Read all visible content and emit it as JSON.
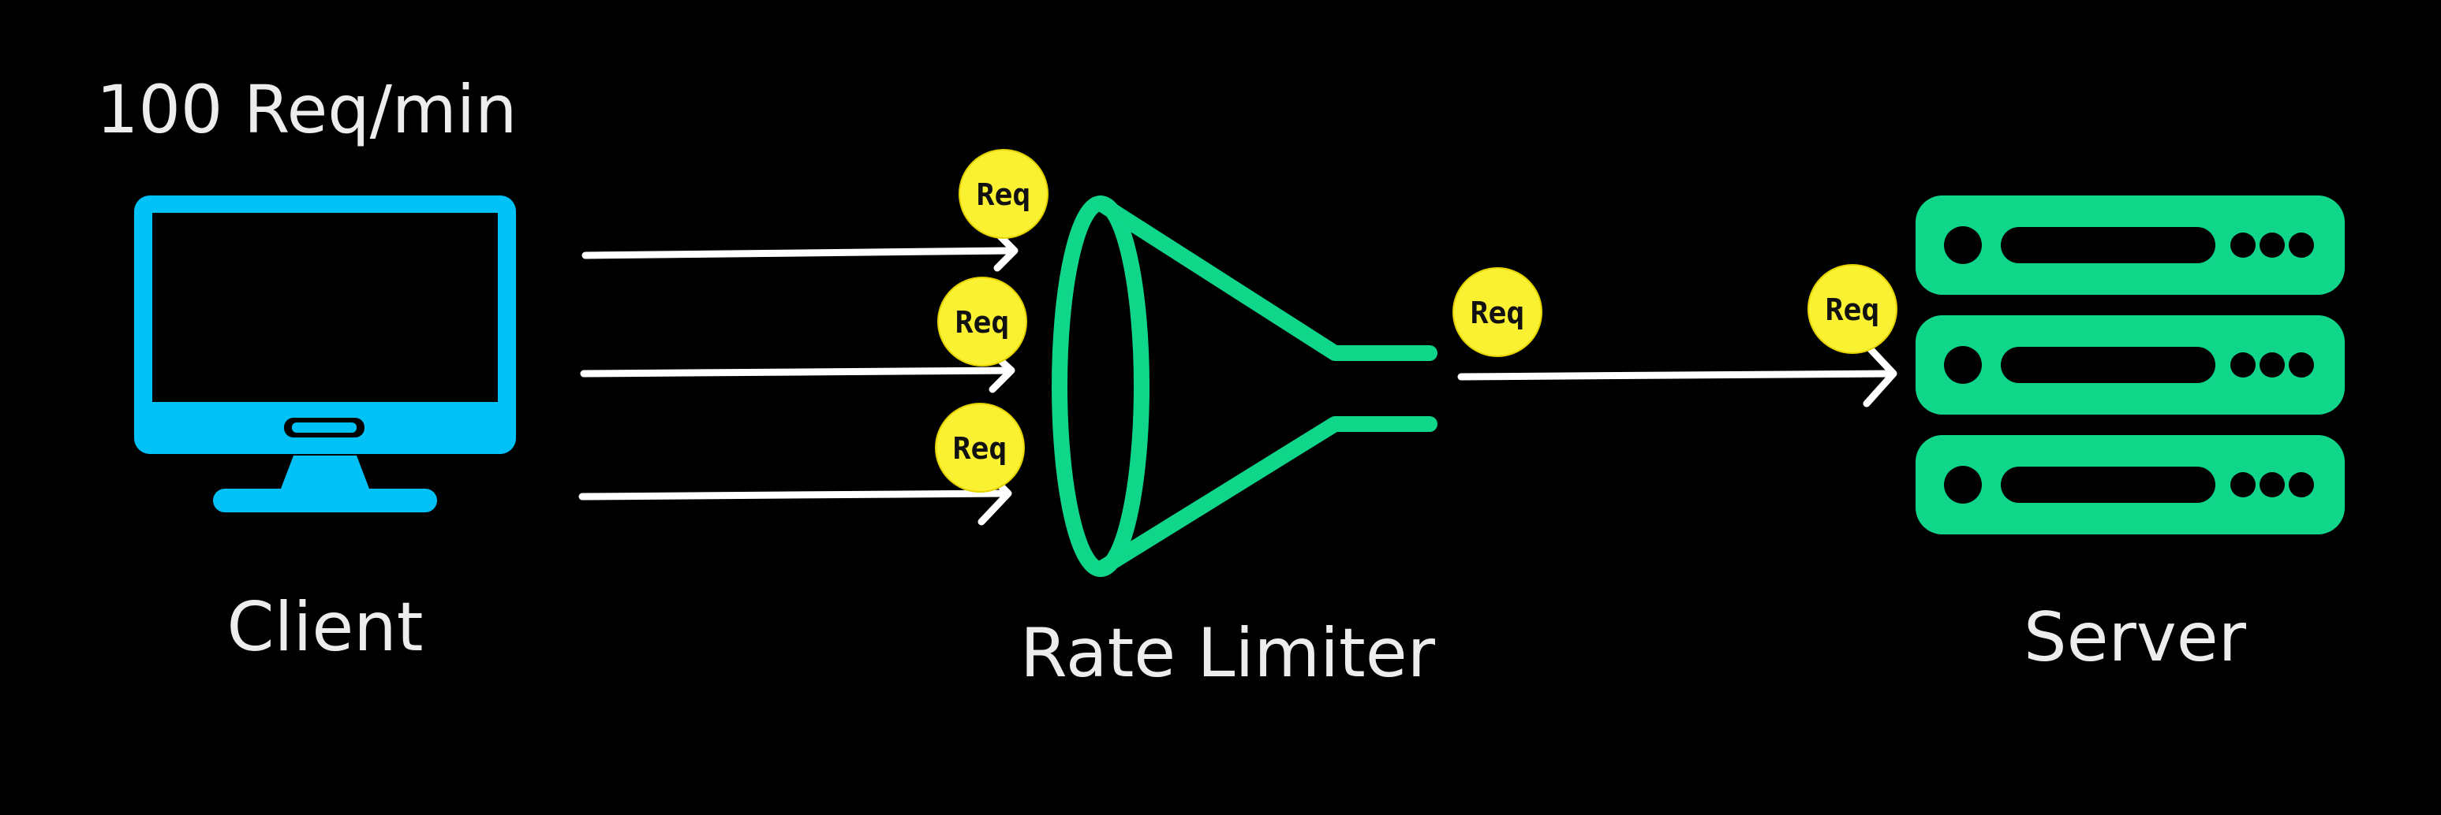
{
  "rate_text": "100 Req/min",
  "client": {
    "label": "Client",
    "color": "#00c2f7",
    "icon": "monitor-icon"
  },
  "rate_limiter": {
    "label": "Rate Limiter",
    "color": "#10d68a",
    "icon": "funnel-icon"
  },
  "server": {
    "label": "Server",
    "color": "#10d68a",
    "icon": "server-rack-icon"
  },
  "request_token": {
    "text": "Req",
    "color": "#fbf133"
  },
  "incoming_requests": [
    {
      "text": "Req"
    },
    {
      "text": "Req"
    },
    {
      "text": "Req"
    }
  ],
  "outgoing_requests": [
    {
      "text": "Req"
    },
    {
      "text": "Req"
    }
  ]
}
